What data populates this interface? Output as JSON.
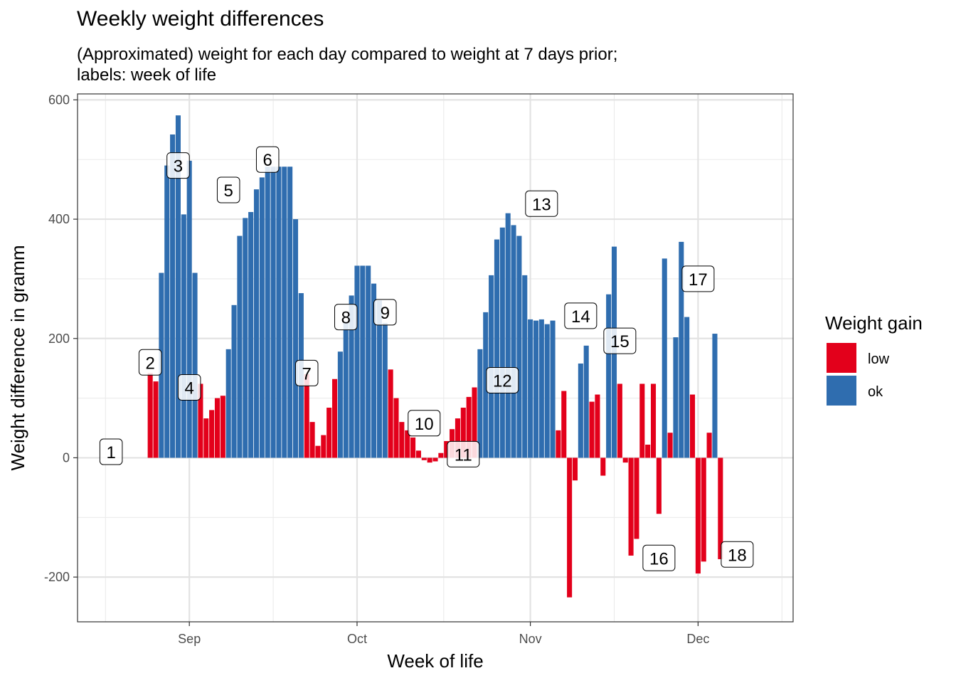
{
  "chart_data": {
    "type": "bar",
    "title": "Weekly weight differences",
    "subtitle": "(Approximated) weight for each day compared to weight at 7 days prior;\nlabels: week of life",
    "xlabel": "Week of life",
    "ylabel": "Weight difference in gramm",
    "x_start_date": "2023-08-18",
    "x_range": [
      "2023-08-12",
      "2023-12-18"
    ],
    "ylim": [
      -275,
      610
    ],
    "y_ticks": [
      -200,
      0,
      200,
      400,
      600
    ],
    "x_ticks": [
      {
        "label": "Sep",
        "date": "2023-09-01"
      },
      {
        "label": "Oct",
        "date": "2023-10-01"
      },
      {
        "label": "Nov",
        "date": "2023-11-01"
      },
      {
        "label": "Dec",
        "date": "2023-12-01"
      }
    ],
    "legend": {
      "title": "Weight gain",
      "position": "right",
      "entries": [
        {
          "label": "low",
          "color": "#E3001B"
        },
        {
          "label": "ok",
          "color": "#2F6DAF"
        }
      ]
    },
    "colors": {
      "low": "#E3001B",
      "ok": "#2F6DAF"
    },
    "grid": true,
    "values": [
      0,
      0,
      0,
      0,
      0,
      0,
      0,
      142,
      128,
      310,
      490,
      542,
      574,
      408,
      498,
      310,
      124,
      66,
      80,
      100,
      104,
      182,
      256,
      372,
      402,
      412,
      450,
      470,
      488,
      488,
      488,
      488,
      488,
      400,
      276,
      140,
      60,
      20,
      38,
      84,
      132,
      178,
      228,
      272,
      322,
      322,
      322,
      292,
      264,
      226,
      148,
      100,
      60,
      46,
      34,
      12,
      -4,
      -8,
      -6,
      8,
      28,
      48,
      66,
      84,
      102,
      118,
      182,
      244,
      306,
      366,
      386,
      410,
      390,
      372,
      306,
      232,
      230,
      232,
      224,
      230,
      46,
      112,
      -234,
      -38,
      158,
      188,
      94,
      106,
      -30,
      274,
      354,
      124,
      -8,
      -164,
      -136,
      124,
      22,
      124,
      -94,
      334,
      42,
      202,
      362,
      236,
      106,
      -194,
      -174,
      42,
      208,
      -170
    ],
    "week_labels": [
      {
        "label": "1",
        "date": "2023-08-18",
        "y": 10
      },
      {
        "label": "2",
        "date": "2023-08-25",
        "y": 160
      },
      {
        "label": "3",
        "date": "2023-08-30",
        "y": 490
      },
      {
        "label": "4",
        "date": "2023-09-01",
        "y": 118
      },
      {
        "label": "5",
        "date": "2023-09-08",
        "y": 449
      },
      {
        "label": "6",
        "date": "2023-09-15",
        "y": 500
      },
      {
        "label": "7",
        "date": "2023-09-22",
        "y": 142
      },
      {
        "label": "8",
        "date": "2023-09-29",
        "y": 236
      },
      {
        "label": "9",
        "date": "2023-10-06",
        "y": 244
      },
      {
        "label": "10",
        "date": "2023-10-13",
        "y": 58
      },
      {
        "label": "11",
        "date": "2023-10-20",
        "y": 6
      },
      {
        "label": "12",
        "date": "2023-10-27",
        "y": 130
      },
      {
        "label": "13",
        "date": "2023-11-03",
        "y": 426
      },
      {
        "label": "14",
        "date": "2023-11-10",
        "y": 238
      },
      {
        "label": "15",
        "date": "2023-11-17",
        "y": 196
      },
      {
        "label": "16",
        "date": "2023-11-24",
        "y": -168
      },
      {
        "label": "17",
        "date": "2023-12-01",
        "y": 300
      },
      {
        "label": "18",
        "date": "2023-12-08",
        "y": -162
      }
    ]
  }
}
